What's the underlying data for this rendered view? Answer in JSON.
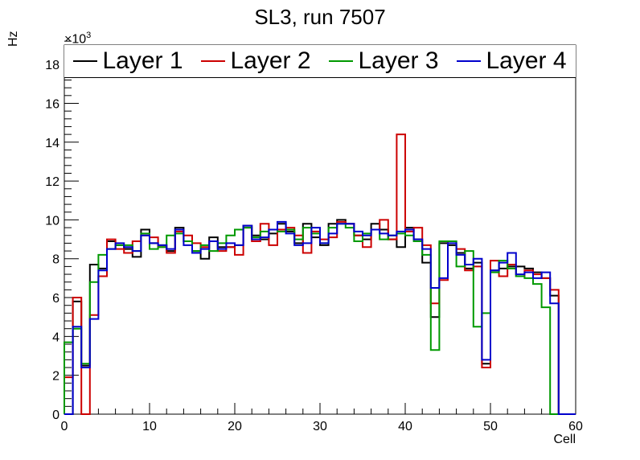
{
  "chart_data": {
    "type": "step-histogram",
    "title": "SL3, run 7507",
    "ylabel": "Hz",
    "xlabel": "Cell",
    "y_scale_label": "×10",
    "y_scale_exp": "3",
    "xlim": [
      0,
      60
    ],
    "ylim": [
      0,
      19
    ],
    "x_ticks": [
      0,
      10,
      20,
      30,
      40,
      50,
      60
    ],
    "y_ticks": [
      0,
      2,
      4,
      6,
      8,
      10,
      12,
      14,
      16,
      18
    ],
    "legend_placement": "top",
    "series": [
      {
        "name": "Layer 1",
        "color": "#000000",
        "values": [
          0,
          5.8,
          2.5,
          7.7,
          7.5,
          8.9,
          8.7,
          8.5,
          8.1,
          9.5,
          8.8,
          8.7,
          8.4,
          9.6,
          8.9,
          8.4,
          8.0,
          9.1,
          8.6,
          8.6,
          8.7,
          9.7,
          9.2,
          9.0,
          9.3,
          9.8,
          9.4,
          8.8,
          9.8,
          9.1,
          8.7,
          9.8,
          10.0,
          9.8,
          9.2,
          9.0,
          9.8,
          9.5,
          9.0,
          8.6,
          9.6,
          9.0,
          7.8,
          5.0,
          8.8,
          8.7,
          8.3,
          7.5,
          7.8,
          2.6,
          7.4,
          7.5,
          7.6,
          7.6,
          7.5,
          7.3,
          7.0,
          6.1,
          0,
          0
        ]
      },
      {
        "name": "Layer 2",
        "color": "#cc0000",
        "values": [
          1.9,
          6.0,
          0,
          5.1,
          7.1,
          9.0,
          8.5,
          8.3,
          8.9,
          9.2,
          9.1,
          8.6,
          8.3,
          9.4,
          9.2,
          8.8,
          8.6,
          8.9,
          8.4,
          8.6,
          8.2,
          9.6,
          8.9,
          9.8,
          8.7,
          9.5,
          9.6,
          9.2,
          8.3,
          9.4,
          9.0,
          9.1,
          9.9,
          9.8,
          9.2,
          8.6,
          9.5,
          10.0,
          9.0,
          14.4,
          9.4,
          9.6,
          8.7,
          5.7,
          6.9,
          8.9,
          8.5,
          7.4,
          7.6,
          2.4,
          7.9,
          7.1,
          7.7,
          7.1,
          7.4,
          7.2,
          7.0,
          6.4,
          0,
          0
        ]
      },
      {
        "name": "Layer 3",
        "color": "#009900",
        "values": [
          3.7,
          4.4,
          2.6,
          6.8,
          8.2,
          8.5,
          8.7,
          8.7,
          8.4,
          9.3,
          8.5,
          8.6,
          9.2,
          9.3,
          8.9,
          8.4,
          8.7,
          8.4,
          8.8,
          9.2,
          9.5,
          9.6,
          9.1,
          9.4,
          9.5,
          9.4,
          9.5,
          9.0,
          9.6,
          9.3,
          8.8,
          9.6,
          9.8,
          9.6,
          8.9,
          9.3,
          9.5,
          9.0,
          9.2,
          9.3,
          9.2,
          8.9,
          8.2,
          3.3,
          8.9,
          8.9,
          7.6,
          8.4,
          4.5,
          5.2,
          7.3,
          7.9,
          7.5,
          7.1,
          7.0,
          6.7,
          5.5,
          0,
          0,
          0
        ]
      },
      {
        "name": "Layer 4",
        "color": "#0000cc",
        "values": [
          0,
          4.5,
          2.4,
          4.9,
          7.4,
          8.5,
          8.8,
          8.6,
          8.4,
          9.2,
          8.8,
          8.7,
          8.5,
          9.5,
          8.7,
          8.3,
          8.5,
          8.9,
          8.5,
          8.8,
          8.7,
          9.7,
          9.0,
          9.1,
          9.5,
          9.9,
          9.3,
          8.7,
          8.8,
          9.6,
          8.8,
          9.3,
          9.8,
          9.8,
          9.4,
          9.2,
          9.5,
          9.3,
          9.2,
          9.4,
          9.5,
          9.0,
          8.5,
          6.5,
          7.0,
          8.8,
          8.2,
          7.7,
          8.0,
          2.8,
          7.4,
          7.8,
          8.3,
          7.2,
          7.3,
          7.0,
          7.3,
          5.7,
          0,
          0
        ]
      }
    ]
  }
}
